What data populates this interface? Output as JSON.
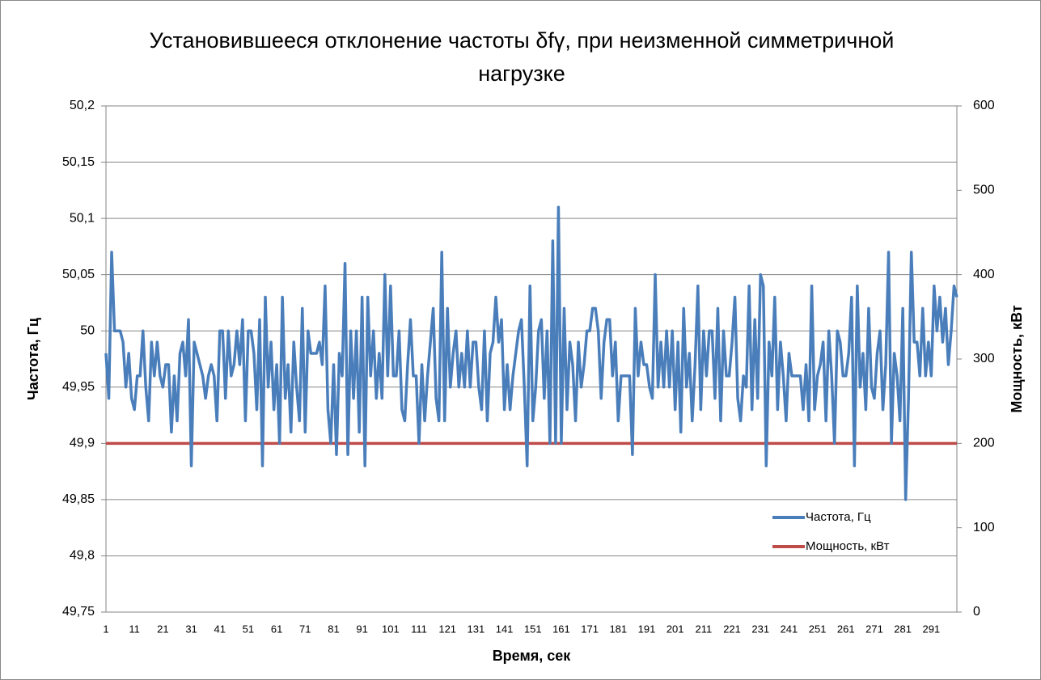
{
  "chart_data": {
    "type": "line",
    "title_lines": [
      "Установившееся отклонение частоты δfγ, при неизменной симметричной",
      "нагрузке"
    ],
    "x_label": "Время, сек",
    "y_label": "Частота, Гц",
    "y2_label": "Мощность, кВт",
    "categories": [
      "1",
      null,
      null,
      null,
      null,
      null,
      null,
      null,
      null,
      null,
      "11",
      null,
      null,
      null,
      null,
      null,
      null,
      null,
      null,
      null,
      "21",
      null,
      null,
      null,
      null,
      null,
      null,
      null,
      null,
      null,
      "31",
      null,
      null,
      null,
      null,
      null,
      null,
      null,
      null,
      null,
      "41",
      null,
      null,
      null,
      null,
      null,
      null,
      null,
      null,
      null,
      "51",
      null,
      null,
      null,
      null,
      null,
      null,
      null,
      null,
      null,
      "61",
      null,
      null,
      null,
      null,
      null,
      null,
      null,
      null,
      null,
      "71",
      null,
      null,
      null,
      null,
      null,
      null,
      null,
      null,
      null,
      "81",
      null,
      null,
      null,
      null,
      null,
      null,
      null,
      null,
      null,
      "91",
      null,
      null,
      null,
      null,
      null,
      null,
      null,
      null,
      null,
      "101",
      null,
      null,
      null,
      null,
      null,
      null,
      null,
      null,
      null,
      "111",
      null,
      null,
      null,
      null,
      null,
      null,
      null,
      null,
      null,
      "121",
      null,
      null,
      null,
      null,
      null,
      null,
      null,
      null,
      null,
      "131",
      null,
      null,
      null,
      null,
      null,
      null,
      null,
      null,
      null,
      "141",
      null,
      null,
      null,
      null,
      null,
      null,
      null,
      null,
      null,
      "151",
      null,
      null,
      null,
      null,
      null,
      null,
      null,
      null,
      null,
      "161",
      null,
      null,
      null,
      null,
      null,
      null,
      null,
      null,
      null,
      "171",
      null,
      null,
      null,
      null,
      null,
      null,
      null,
      null,
      null,
      "181",
      null,
      null,
      null,
      null,
      null,
      null,
      null,
      null,
      null,
      "191",
      null,
      null,
      null,
      null,
      null,
      null,
      null,
      null,
      null,
      "201",
      null,
      null,
      null,
      null,
      null,
      null,
      null,
      null,
      null,
      "211",
      null,
      null,
      null,
      null,
      null,
      null,
      null,
      null,
      null,
      "221",
      null,
      null,
      null,
      null,
      null,
      null,
      null,
      null,
      null,
      "231",
      null,
      null,
      null,
      null,
      null,
      null,
      null,
      null,
      null,
      "241",
      null,
      null,
      null,
      null,
      null,
      null,
      null,
      null,
      null,
      "251",
      null,
      null,
      null,
      null,
      null,
      null,
      null,
      null,
      null,
      "261",
      null,
      null,
      null,
      null,
      null,
      null,
      null,
      null,
      null,
      "271",
      null,
      null,
      null,
      null,
      null,
      null,
      null,
      null,
      null,
      "281",
      null,
      null,
      null,
      null,
      null,
      null,
      null,
      null,
      null,
      "291",
      null,
      null,
      null,
      null,
      null,
      null,
      null,
      null,
      null
    ],
    "series": [
      {
        "name": "Частота, Гц",
        "color": "#4a7ebb",
        "values": [
          49.98,
          49.94,
          50.07,
          50.0,
          50.0,
          50.0,
          49.99,
          49.95,
          49.98,
          49.94,
          49.93,
          49.96,
          49.96,
          50.0,
          49.95,
          49.92,
          49.99,
          49.96,
          49.99,
          49.96,
          49.95,
          49.97,
          49.97,
          49.91,
          49.96,
          49.92,
          49.98,
          49.99,
          49.96,
          50.01,
          49.88,
          49.99,
          49.98,
          49.97,
          49.96,
          49.94,
          49.96,
          49.97,
          49.96,
          49.92,
          50.0,
          50.0,
          49.94,
          50.0,
          49.96,
          49.97,
          50.0,
          49.97,
          50.01,
          49.92,
          50.0,
          50.0,
          49.98,
          49.93,
          50.01,
          49.88,
          50.03,
          49.95,
          49.99,
          49.93,
          49.97,
          49.9,
          50.03,
          49.94,
          49.97,
          49.91,
          49.99,
          49.95,
          49.92,
          50.02,
          49.91,
          50.0,
          49.98,
          49.98,
          49.98,
          49.99,
          49.97,
          50.04,
          49.93,
          49.9,
          49.97,
          49.89,
          49.98,
          49.96,
          50.06,
          49.89,
          50.0,
          49.94,
          50.0,
          49.91,
          50.03,
          49.88,
          50.03,
          49.96,
          50.0,
          49.94,
          49.98,
          49.94,
          50.05,
          49.96,
          50.04,
          49.96,
          49.96,
          50.0,
          49.93,
          49.92,
          49.97,
          50.01,
          49.96,
          49.96,
          49.9,
          49.97,
          49.92,
          49.96,
          49.99,
          50.02,
          49.94,
          49.92,
          50.07,
          49.92,
          50.02,
          49.95,
          49.98,
          50.0,
          49.95,
          49.98,
          49.95,
          50.0,
          49.95,
          49.99,
          49.99,
          49.95,
          49.93,
          50.0,
          49.92,
          49.98,
          49.99,
          50.03,
          49.99,
          50.01,
          49.93,
          49.97,
          49.93,
          49.96,
          49.98,
          50.0,
          50.01,
          49.95,
          49.88,
          50.04,
          49.92,
          49.95,
          50.0,
          50.01,
          49.94,
          50.0,
          49.9,
          50.08,
          49.9,
          50.11,
          49.9,
          50.02,
          49.93,
          49.99,
          49.97,
          49.92,
          49.99,
          49.95,
          49.97,
          50.0,
          50.0,
          50.02,
          50.02,
          50.0,
          49.94,
          49.99,
          50.01,
          50.01,
          49.96,
          49.99,
          49.92,
          49.96,
          49.96,
          49.96,
          49.96,
          49.89,
          50.02,
          49.96,
          49.99,
          49.97,
          49.97,
          49.95,
          49.94,
          50.05,
          49.95,
          49.99,
          49.95,
          50.0,
          49.95,
          50.0,
          49.93,
          49.99,
          49.91,
          50.02,
          49.95,
          49.98,
          49.92,
          49.97,
          50.04,
          49.93,
          50.0,
          49.96,
          50.0,
          50.0,
          49.94,
          50.02,
          49.92,
          50.0,
          49.96,
          49.96,
          49.99,
          50.03,
          49.94,
          49.92,
          49.96,
          49.95,
          50.04,
          49.93,
          50.01,
          49.94,
          50.05,
          50.04,
          49.88,
          49.99,
          49.96,
          50.03,
          49.93,
          49.99,
          49.96,
          49.92,
          49.98,
          49.96,
          49.96,
          49.96,
          49.96,
          49.93,
          49.97,
          49.92,
          50.04,
          49.93,
          49.96,
          49.97,
          49.99,
          49.92,
          50.0,
          49.96,
          49.9,
          50.0,
          49.99,
          49.96,
          49.96,
          49.98,
          50.03,
          49.88,
          50.04,
          49.95,
          49.98,
          49.93,
          50.02,
          49.95,
          49.94,
          49.98,
          50.0,
          49.93,
          49.97,
          50.07,
          49.9,
          49.98,
          49.96,
          49.92,
          50.02,
          49.85,
          49.94,
          50.07,
          49.99,
          49.99,
          49.96,
          50.02,
          49.96,
          49.99,
          49.96,
          50.04,
          50.0,
          50.03,
          49.99,
          50.02,
          49.97,
          50.0,
          50.04,
          50.03
        ]
      },
      {
        "name": "Мощность, кВт",
        "color": "#be4b48",
        "axis": "y2",
        "values": [
          200,
          200,
          200,
          200,
          200,
          200,
          200,
          200,
          200,
          200,
          200,
          200,
          200,
          200,
          200,
          200,
          200,
          200,
          200,
          200,
          200,
          200,
          200,
          200,
          200,
          200,
          200,
          200,
          200,
          200,
          200,
          200,
          200,
          200,
          200,
          200,
          200,
          200,
          200,
          200,
          200,
          200,
          200,
          200,
          200,
          200,
          200,
          200,
          200,
          200,
          200,
          200,
          200,
          200,
          200,
          200,
          200,
          200,
          200,
          200,
          200,
          200,
          200,
          200,
          200,
          200,
          200,
          200,
          200,
          200,
          200,
          200,
          200,
          200,
          200,
          200,
          200,
          200,
          200,
          200,
          200,
          200,
          200,
          200,
          200,
          200,
          200,
          200,
          200,
          200,
          200,
          200,
          200,
          200,
          200,
          200,
          200,
          200,
          200,
          200,
          200,
          200,
          200,
          200,
          200,
          200,
          200,
          200,
          200,
          200,
          200,
          200,
          200,
          200,
          200,
          200,
          200,
          200,
          200,
          200,
          200,
          200,
          200,
          200,
          200,
          200,
          200,
          200,
          200,
          200,
          200,
          200,
          200,
          200,
          200,
          200,
          200,
          200,
          200,
          200,
          200,
          200,
          200,
          200,
          200,
          200,
          200,
          200,
          200,
          200,
          200,
          200,
          200,
          200,
          200,
          200,
          200,
          200,
          200,
          200,
          200,
          200,
          200,
          200,
          200,
          200,
          200,
          200,
          200,
          200,
          200,
          200,
          200,
          200,
          200,
          200,
          200,
          200,
          200,
          200,
          200,
          200,
          200,
          200,
          200,
          200,
          200,
          200,
          200,
          200,
          200,
          200,
          200,
          200,
          200,
          200,
          200,
          200,
          200,
          200,
          200,
          200,
          200,
          200,
          200,
          200,
          200,
          200,
          200,
          200,
          200,
          200,
          200,
          200,
          200,
          200,
          200,
          200,
          200,
          200,
          200,
          200,
          200,
          200,
          200,
          200,
          200,
          200,
          200,
          200,
          200,
          200,
          200,
          200,
          200,
          200,
          200,
          200,
          200,
          200,
          200,
          200,
          200,
          200,
          200,
          200,
          200,
          200,
          200,
          200,
          200,
          200,
          200,
          200,
          200,
          200,
          200,
          200,
          200,
          200,
          200,
          200,
          200,
          200,
          200,
          200,
          200,
          200,
          200,
          200,
          200,
          200,
          200,
          200,
          200,
          200,
          200,
          200,
          200,
          200,
          200,
          200,
          200,
          200,
          200,
          200,
          200,
          200,
          200,
          200,
          200,
          200,
          200,
          200,
          200,
          200,
          200,
          200,
          200,
          200
        ]
      }
    ],
    "ylim": [
      49.75,
      50.2
    ],
    "yticks": [
      {
        "value": 49.75,
        "label": "49,75"
      },
      {
        "value": 49.8,
        "label": "49,8"
      },
      {
        "value": 49.85,
        "label": "49,85"
      },
      {
        "value": 49.9,
        "label": "49,9"
      },
      {
        "value": 49.95,
        "label": "49,95"
      },
      50,
      {
        "value": 50.05,
        "label": "50,05"
      },
      {
        "value": 50.1,
        "label": "50,1"
      },
      {
        "value": 50.15,
        "label": "50,15"
      },
      {
        "value": 50.2,
        "label": "50,2"
      }
    ],
    "y2lim": [
      0,
      600
    ],
    "y2ticks": [
      0,
      100,
      200,
      300,
      400,
      500,
      600
    ],
    "grid": true,
    "legend": "right"
  }
}
